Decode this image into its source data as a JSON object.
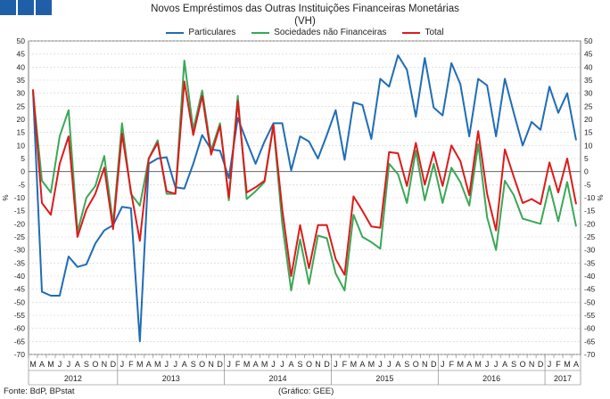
{
  "header": {
    "title": "Novos Empréstimos das Outras Instituições Financeiras Monetárias",
    "subtitle": "(VH)"
  },
  "footer": {
    "source": "Fonte: BdP, BPstat",
    "note": "(Gráfico: GEE)"
  },
  "colors": {
    "logo": "#1f5fa8"
  },
  "chart_data": {
    "type": "line",
    "ylabel_left": "%",
    "ylabel_right": "%",
    "ylim": [
      -70,
      50
    ],
    "ytick_step": 5,
    "grid": true,
    "legend_position": "top-center",
    "x": [
      "M",
      "A",
      "M",
      "J",
      "J",
      "A",
      "S",
      "O",
      "N",
      "D",
      "J",
      "F",
      "M",
      "A",
      "M",
      "J",
      "J",
      "A",
      "S",
      "O",
      "N",
      "D",
      "J",
      "F",
      "M",
      "A",
      "M",
      "J",
      "J",
      "A",
      "S",
      "O",
      "N",
      "D",
      "J",
      "F",
      "M",
      "A",
      "M",
      "J",
      "J",
      "A",
      "S",
      "O",
      "N",
      "D",
      "J",
      "F",
      "M",
      "A",
      "M",
      "J",
      "J",
      "A",
      "S",
      "O",
      "N",
      "D",
      "J",
      "F",
      "M",
      "A"
    ],
    "years": [
      {
        "label": "2012",
        "start": 0,
        "end": 9
      },
      {
        "label": "2013",
        "start": 10,
        "end": 21
      },
      {
        "label": "2014",
        "start": 22,
        "end": 33
      },
      {
        "label": "2015",
        "start": 34,
        "end": 45
      },
      {
        "label": "2016",
        "start": 46,
        "end": 57
      },
      {
        "label": "2017",
        "start": 58,
        "end": 61
      }
    ],
    "series": [
      {
        "name": "Particulares",
        "color": "#1f6db5",
        "values": [
          31,
          -46,
          -47.5,
          -47.5,
          -32.5,
          -36.5,
          -35.5,
          -27.5,
          -22.5,
          -20.5,
          -13.5,
          -14,
          -65,
          3,
          5,
          5.5,
          -6,
          -6.5,
          3,
          14,
          8.5,
          8,
          -2.5,
          20.5,
          11.5,
          3,
          11.5,
          18.5,
          18.5,
          0.5,
          13.5,
          11.5,
          5,
          14,
          23.5,
          4.5,
          26.5,
          25.5,
          12.5,
          35.5,
          32.5,
          44.5,
          39,
          21,
          43.5,
          24.5,
          21.5,
          41.5,
          33.5,
          13.5,
          35.5,
          33,
          13.5,
          35.5,
          22.5,
          10,
          19,
          16,
          32.5,
          22.5,
          30,
          12
        ]
      },
      {
        "name": "Sociedades não Financeiras",
        "color": "#3aa857",
        "values": [
          30.5,
          -3.5,
          -8,
          13.5,
          23.5,
          -23,
          -10,
          -5.5,
          6,
          -20,
          18.5,
          -8.5,
          -13,
          5,
          12,
          -8.5,
          -8.5,
          42.5,
          16,
          31,
          8,
          18.5,
          -11,
          29,
          -10.5,
          -7.5,
          -4,
          17.5,
          -20,
          -45.5,
          -26,
          -43,
          -24.5,
          -25.5,
          -39,
          -45.5,
          -16.5,
          -25,
          -27,
          -29.5,
          3,
          -1,
          -12,
          8,
          -11,
          3,
          -12,
          1.5,
          -4,
          -13,
          10.5,
          -17.5,
          -30,
          -3.5,
          -9,
          -18,
          -19,
          -20,
          -5.5,
          -19,
          -4,
          -21
        ]
      },
      {
        "name": "Total",
        "color": "#dd1b1b",
        "values": [
          31.5,
          -12,
          -16.5,
          3,
          13.5,
          -25,
          -14.5,
          -8.5,
          1.5,
          -22,
          14.5,
          -7.5,
          -26.5,
          5,
          11,
          -7.5,
          -8.5,
          34.5,
          14,
          29,
          6.5,
          17.5,
          -10,
          27,
          -8,
          -6,
          -3.5,
          18,
          -14.5,
          -40,
          -20.5,
          -37,
          -20.5,
          -20.5,
          -33.5,
          -39.5,
          -9.5,
          -15,
          -21,
          -21.5,
          7.5,
          7,
          -5.5,
          11,
          -5,
          7.5,
          -5.5,
          10,
          4,
          -9,
          15.5,
          -8.5,
          -22.5,
          8.5,
          -2,
          -12,
          -10.5,
          -12.5,
          3.5,
          -8,
          5,
          -12.5
        ]
      }
    ]
  }
}
